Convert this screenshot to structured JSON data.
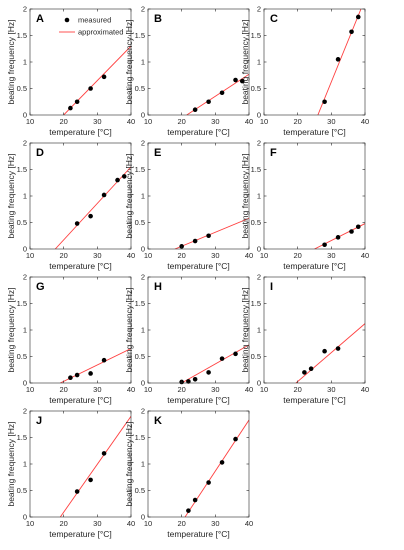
{
  "legend": {
    "measured": "measured",
    "approximated": "approximated"
  },
  "colors": {
    "fit_line": "#ff4040",
    "marker": "#000000",
    "axis": "#262626"
  },
  "chart_data": [
    {
      "type": "scatter",
      "panel": "A",
      "xlabel": "temperature [°C]",
      "ylabel": "beating frequency [Hz]",
      "xlim": [
        10,
        40
      ],
      "ylim": [
        0,
        2
      ],
      "xticks": [
        10,
        20,
        30,
        40
      ],
      "yticks": [
        0,
        0.5,
        1,
        1.5,
        2
      ],
      "ytick_labels": [
        "0",
        "0.5",
        "1",
        "1.5",
        "2"
      ],
      "points": [
        [
          22,
          0.13
        ],
        [
          24,
          0.25
        ],
        [
          28,
          0.5
        ],
        [
          32,
          0.72
        ]
      ],
      "fit_line": {
        "from": [
          20,
          0
        ],
        "to": [
          40,
          1.3
        ]
      },
      "legend": true
    },
    {
      "type": "scatter",
      "panel": "B",
      "xlabel": "temperature [°C]",
      "ylabel": "beating frequency [Hz]",
      "xlim": [
        10,
        40
      ],
      "ylim": [
        0,
        2
      ],
      "xticks": [
        10,
        20,
        30,
        40
      ],
      "yticks": [
        0,
        0.5,
        1,
        1.5,
        2
      ],
      "ytick_labels": [
        "0",
        "0.5",
        "1",
        "1.5",
        "2"
      ],
      "points": [
        [
          24,
          0.1
        ],
        [
          28,
          0.25
        ],
        [
          32,
          0.42
        ],
        [
          36,
          0.66
        ],
        [
          38,
          0.64
        ]
      ],
      "fit_line": {
        "from": [
          21.5,
          0
        ],
        "to": [
          40,
          0.77
        ]
      }
    },
    {
      "type": "scatter",
      "panel": "C",
      "xlabel": "temperature [°C]",
      "ylabel": "beating frequency [Hz]",
      "xlim": [
        10,
        40
      ],
      "ylim": [
        0,
        2
      ],
      "xticks": [
        10,
        20,
        30,
        40
      ],
      "yticks": [
        0,
        0.5,
        1,
        1.5,
        2
      ],
      "ytick_labels": [
        "0",
        "0.5",
        "1",
        "1.5",
        "2"
      ],
      "points": [
        [
          28,
          0.25
        ],
        [
          32,
          1.05
        ],
        [
          36,
          1.57
        ],
        [
          38,
          1.85
        ]
      ],
      "fit_line": {
        "from": [
          26,
          0
        ],
        "to": [
          38.8,
          2
        ]
      }
    },
    {
      "type": "scatter",
      "panel": "D",
      "xlabel": "temperature [°C]",
      "ylabel": "beating frequency [Hz]",
      "xlim": [
        10,
        40
      ],
      "ylim": [
        0,
        2
      ],
      "xticks": [
        10,
        20,
        30,
        40
      ],
      "yticks": [
        0,
        0.5,
        1,
        1.5,
        2
      ],
      "ytick_labels": [
        "0",
        "0.5",
        "1",
        "1.5",
        "2"
      ],
      "points": [
        [
          24,
          0.48
        ],
        [
          28,
          0.62
        ],
        [
          32,
          1.02
        ],
        [
          36,
          1.3
        ],
        [
          38,
          1.37
        ]
      ],
      "fit_line": {
        "from": [
          17.5,
          0
        ],
        "to": [
          40,
          1.55
        ]
      }
    },
    {
      "type": "scatter",
      "panel": "E",
      "xlabel": "temperature [°C]",
      "ylabel": "beating frequency [Hz]",
      "xlim": [
        10,
        40
      ],
      "ylim": [
        0,
        2
      ],
      "xticks": [
        10,
        20,
        30,
        40
      ],
      "yticks": [
        0,
        0.5,
        1,
        1.5,
        2
      ],
      "ytick_labels": [
        "0",
        "0.5",
        "1",
        "1.5",
        "2"
      ],
      "points": [
        [
          20,
          0.05
        ],
        [
          24,
          0.15
        ],
        [
          28,
          0.25
        ]
      ],
      "fit_line": {
        "from": [
          18,
          0
        ],
        "to": [
          40,
          0.58
        ]
      }
    },
    {
      "type": "scatter",
      "panel": "F",
      "xlabel": "temperature [°C]",
      "ylabel": "beating frequency [Hz]",
      "xlim": [
        10,
        40
      ],
      "ylim": [
        0,
        2
      ],
      "xticks": [
        10,
        20,
        30,
        40
      ],
      "yticks": [
        0,
        0.5,
        1,
        1.5,
        2
      ],
      "ytick_labels": [
        "0",
        "0.5",
        "1",
        "1.5",
        "2"
      ],
      "points": [
        [
          28,
          0.08
        ],
        [
          32,
          0.22
        ],
        [
          36,
          0.33
        ],
        [
          38,
          0.42
        ]
      ],
      "fit_line": {
        "from": [
          25,
          0
        ],
        "to": [
          40,
          0.48
        ]
      }
    },
    {
      "type": "scatter",
      "panel": "G",
      "xlabel": "temperature [°C]",
      "ylabel": "beating frequency [Hz]",
      "xlim": [
        10,
        40
      ],
      "ylim": [
        0,
        2
      ],
      "xticks": [
        10,
        20,
        30,
        40
      ],
      "yticks": [
        0,
        0.5,
        1,
        1.5,
        2
      ],
      "ytick_labels": [
        "0",
        "0.5",
        "1",
        "1.5",
        "2"
      ],
      "points": [
        [
          22,
          0.1
        ],
        [
          24,
          0.15
        ],
        [
          28,
          0.18
        ],
        [
          32,
          0.43
        ]
      ],
      "fit_line": {
        "from": [
          19,
          0
        ],
        "to": [
          40,
          0.65
        ]
      }
    },
    {
      "type": "scatter",
      "panel": "H",
      "xlabel": "temperature [°C]",
      "ylabel": "beating frequency [Hz]",
      "xlim": [
        10,
        40
      ],
      "ylim": [
        0,
        2
      ],
      "xticks": [
        10,
        20,
        30,
        40
      ],
      "yticks": [
        0,
        0.5,
        1,
        1.5,
        2
      ],
      "ytick_labels": [
        "0",
        "0.5",
        "1",
        "1.5",
        "2"
      ],
      "points": [
        [
          20,
          0.02
        ],
        [
          22,
          0.03
        ],
        [
          24,
          0.07
        ],
        [
          28,
          0.2
        ],
        [
          32,
          0.46
        ],
        [
          36,
          0.55
        ]
      ],
      "fit_line": {
        "from": [
          20,
          0
        ],
        "to": [
          40,
          0.72
        ]
      }
    },
    {
      "type": "scatter",
      "panel": "I",
      "xlabel": "temperature [°C]",
      "ylabel": "beating frequency [Hz]",
      "xlim": [
        10,
        40
      ],
      "ylim": [
        0,
        2
      ],
      "xticks": [
        10,
        20,
        30,
        40
      ],
      "yticks": [
        0,
        0.5,
        1,
        1.5,
        2
      ],
      "ytick_labels": [
        "0",
        "0.5",
        "1",
        "1.5",
        "2"
      ],
      "points": [
        [
          22,
          0.2
        ],
        [
          24,
          0.27
        ],
        [
          28,
          0.6
        ],
        [
          32,
          0.65
        ]
      ],
      "fit_line": {
        "from": [
          19.5,
          0
        ],
        "to": [
          40,
          1.12
        ]
      }
    },
    {
      "type": "scatter",
      "panel": "J",
      "xlabel": "temperature [°C]",
      "ylabel": "beating frequency [Hz]",
      "xlim": [
        10,
        40
      ],
      "ylim": [
        0,
        2
      ],
      "xticks": [
        10,
        20,
        30,
        40
      ],
      "yticks": [
        0,
        0.5,
        1,
        1.5,
        2
      ],
      "ytick_labels": [
        "0",
        "0.5",
        "1",
        "1.5",
        "2"
      ],
      "points": [
        [
          24,
          0.48
        ],
        [
          28,
          0.7
        ],
        [
          32,
          1.2
        ]
      ],
      "fit_line": {
        "from": [
          19,
          0
        ],
        "to": [
          40,
          1.9
        ]
      }
    },
    {
      "type": "scatter",
      "panel": "K",
      "xlabel": "temperature [°C]",
      "ylabel": "beating frequency [Hz]",
      "xlim": [
        10,
        40
      ],
      "ylim": [
        0,
        2
      ],
      "xticks": [
        10,
        20,
        30,
        40
      ],
      "yticks": [
        0,
        0.5,
        1,
        1.5,
        2
      ],
      "ytick_labels": [
        "0",
        "0.5",
        "1",
        "1.5",
        "2"
      ],
      "points": [
        [
          22,
          0.12
        ],
        [
          24,
          0.32
        ],
        [
          28,
          0.65
        ],
        [
          32,
          1.03
        ],
        [
          36,
          1.47
        ]
      ],
      "fit_line": {
        "from": [
          21,
          0
        ],
        "to": [
          40,
          1.83
        ]
      }
    }
  ]
}
